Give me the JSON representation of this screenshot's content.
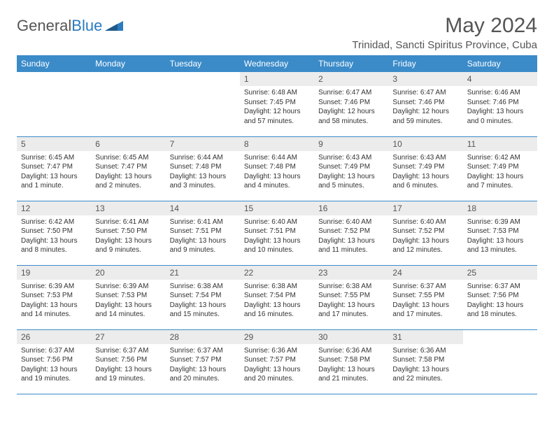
{
  "brand": {
    "part1": "General",
    "part2": "Blue"
  },
  "title": "May 2024",
  "location": "Trinidad, Sancti Spiritus Province, Cuba",
  "colors": {
    "header_bg": "#3b8bc9",
    "header_fg": "#ffffff",
    "daynum_bg": "#ececec",
    "border": "#3b8bc9",
    "text": "#333333",
    "title_fg": "#555555"
  },
  "weekdays": [
    "Sunday",
    "Monday",
    "Tuesday",
    "Wednesday",
    "Thursday",
    "Friday",
    "Saturday"
  ],
  "weeks": [
    [
      {
        "n": "",
        "sr": "",
        "ss": "",
        "dl1": "",
        "dl2": "",
        "empty": true
      },
      {
        "n": "",
        "sr": "",
        "ss": "",
        "dl1": "",
        "dl2": "",
        "empty": true
      },
      {
        "n": "",
        "sr": "",
        "ss": "",
        "dl1": "",
        "dl2": "",
        "empty": true
      },
      {
        "n": "1",
        "sr": "Sunrise: 6:48 AM",
        "ss": "Sunset: 7:45 PM",
        "dl1": "Daylight: 12 hours",
        "dl2": "and 57 minutes."
      },
      {
        "n": "2",
        "sr": "Sunrise: 6:47 AM",
        "ss": "Sunset: 7:46 PM",
        "dl1": "Daylight: 12 hours",
        "dl2": "and 58 minutes."
      },
      {
        "n": "3",
        "sr": "Sunrise: 6:47 AM",
        "ss": "Sunset: 7:46 PM",
        "dl1": "Daylight: 12 hours",
        "dl2": "and 59 minutes."
      },
      {
        "n": "4",
        "sr": "Sunrise: 6:46 AM",
        "ss": "Sunset: 7:46 PM",
        "dl1": "Daylight: 13 hours",
        "dl2": "and 0 minutes."
      }
    ],
    [
      {
        "n": "5",
        "sr": "Sunrise: 6:45 AM",
        "ss": "Sunset: 7:47 PM",
        "dl1": "Daylight: 13 hours",
        "dl2": "and 1 minute."
      },
      {
        "n": "6",
        "sr": "Sunrise: 6:45 AM",
        "ss": "Sunset: 7:47 PM",
        "dl1": "Daylight: 13 hours",
        "dl2": "and 2 minutes."
      },
      {
        "n": "7",
        "sr": "Sunrise: 6:44 AM",
        "ss": "Sunset: 7:48 PM",
        "dl1": "Daylight: 13 hours",
        "dl2": "and 3 minutes."
      },
      {
        "n": "8",
        "sr": "Sunrise: 6:44 AM",
        "ss": "Sunset: 7:48 PM",
        "dl1": "Daylight: 13 hours",
        "dl2": "and 4 minutes."
      },
      {
        "n": "9",
        "sr": "Sunrise: 6:43 AM",
        "ss": "Sunset: 7:49 PM",
        "dl1": "Daylight: 13 hours",
        "dl2": "and 5 minutes."
      },
      {
        "n": "10",
        "sr": "Sunrise: 6:43 AM",
        "ss": "Sunset: 7:49 PM",
        "dl1": "Daylight: 13 hours",
        "dl2": "and 6 minutes."
      },
      {
        "n": "11",
        "sr": "Sunrise: 6:42 AM",
        "ss": "Sunset: 7:49 PM",
        "dl1": "Daylight: 13 hours",
        "dl2": "and 7 minutes."
      }
    ],
    [
      {
        "n": "12",
        "sr": "Sunrise: 6:42 AM",
        "ss": "Sunset: 7:50 PM",
        "dl1": "Daylight: 13 hours",
        "dl2": "and 8 minutes."
      },
      {
        "n": "13",
        "sr": "Sunrise: 6:41 AM",
        "ss": "Sunset: 7:50 PM",
        "dl1": "Daylight: 13 hours",
        "dl2": "and 9 minutes."
      },
      {
        "n": "14",
        "sr": "Sunrise: 6:41 AM",
        "ss": "Sunset: 7:51 PM",
        "dl1": "Daylight: 13 hours",
        "dl2": "and 9 minutes."
      },
      {
        "n": "15",
        "sr": "Sunrise: 6:40 AM",
        "ss": "Sunset: 7:51 PM",
        "dl1": "Daylight: 13 hours",
        "dl2": "and 10 minutes."
      },
      {
        "n": "16",
        "sr": "Sunrise: 6:40 AM",
        "ss": "Sunset: 7:52 PM",
        "dl1": "Daylight: 13 hours",
        "dl2": "and 11 minutes."
      },
      {
        "n": "17",
        "sr": "Sunrise: 6:40 AM",
        "ss": "Sunset: 7:52 PM",
        "dl1": "Daylight: 13 hours",
        "dl2": "and 12 minutes."
      },
      {
        "n": "18",
        "sr": "Sunrise: 6:39 AM",
        "ss": "Sunset: 7:53 PM",
        "dl1": "Daylight: 13 hours",
        "dl2": "and 13 minutes."
      }
    ],
    [
      {
        "n": "19",
        "sr": "Sunrise: 6:39 AM",
        "ss": "Sunset: 7:53 PM",
        "dl1": "Daylight: 13 hours",
        "dl2": "and 14 minutes."
      },
      {
        "n": "20",
        "sr": "Sunrise: 6:39 AM",
        "ss": "Sunset: 7:53 PM",
        "dl1": "Daylight: 13 hours",
        "dl2": "and 14 minutes."
      },
      {
        "n": "21",
        "sr": "Sunrise: 6:38 AM",
        "ss": "Sunset: 7:54 PM",
        "dl1": "Daylight: 13 hours",
        "dl2": "and 15 minutes."
      },
      {
        "n": "22",
        "sr": "Sunrise: 6:38 AM",
        "ss": "Sunset: 7:54 PM",
        "dl1": "Daylight: 13 hours",
        "dl2": "and 16 minutes."
      },
      {
        "n": "23",
        "sr": "Sunrise: 6:38 AM",
        "ss": "Sunset: 7:55 PM",
        "dl1": "Daylight: 13 hours",
        "dl2": "and 17 minutes."
      },
      {
        "n": "24",
        "sr": "Sunrise: 6:37 AM",
        "ss": "Sunset: 7:55 PM",
        "dl1": "Daylight: 13 hours",
        "dl2": "and 17 minutes."
      },
      {
        "n": "25",
        "sr": "Sunrise: 6:37 AM",
        "ss": "Sunset: 7:56 PM",
        "dl1": "Daylight: 13 hours",
        "dl2": "and 18 minutes."
      }
    ],
    [
      {
        "n": "26",
        "sr": "Sunrise: 6:37 AM",
        "ss": "Sunset: 7:56 PM",
        "dl1": "Daylight: 13 hours",
        "dl2": "and 19 minutes."
      },
      {
        "n": "27",
        "sr": "Sunrise: 6:37 AM",
        "ss": "Sunset: 7:56 PM",
        "dl1": "Daylight: 13 hours",
        "dl2": "and 19 minutes."
      },
      {
        "n": "28",
        "sr": "Sunrise: 6:37 AM",
        "ss": "Sunset: 7:57 PM",
        "dl1": "Daylight: 13 hours",
        "dl2": "and 20 minutes."
      },
      {
        "n": "29",
        "sr": "Sunrise: 6:36 AM",
        "ss": "Sunset: 7:57 PM",
        "dl1": "Daylight: 13 hours",
        "dl2": "and 20 minutes."
      },
      {
        "n": "30",
        "sr": "Sunrise: 6:36 AM",
        "ss": "Sunset: 7:58 PM",
        "dl1": "Daylight: 13 hours",
        "dl2": "and 21 minutes."
      },
      {
        "n": "31",
        "sr": "Sunrise: 6:36 AM",
        "ss": "Sunset: 7:58 PM",
        "dl1": "Daylight: 13 hours",
        "dl2": "and 22 minutes."
      },
      {
        "n": "",
        "sr": "",
        "ss": "",
        "dl1": "",
        "dl2": "",
        "empty": true
      }
    ]
  ]
}
